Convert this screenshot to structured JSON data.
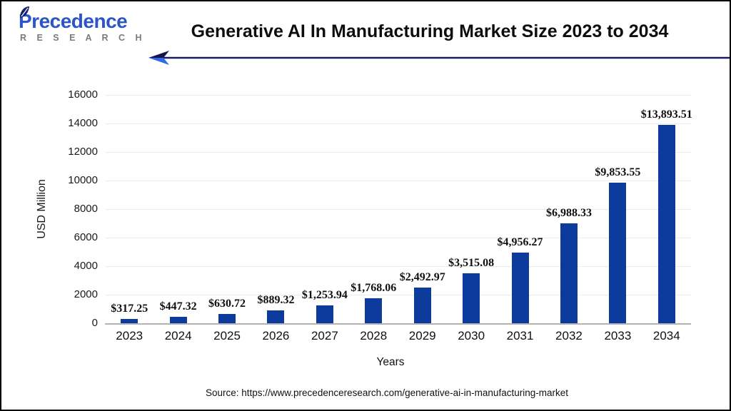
{
  "logo": {
    "brand": "Precedence",
    "sub": "R E S E A R C H"
  },
  "header": {
    "title": "Generative AI In Manufacturing Market Size 2023 to 2034"
  },
  "chart_data": {
    "type": "bar",
    "title": "Generative AI In Manufacturing Market Size 2023 to 2034",
    "categories": [
      "2023",
      "2024",
      "2025",
      "2026",
      "2027",
      "2028",
      "2029",
      "2030",
      "2031",
      "2032",
      "2033",
      "2034"
    ],
    "values": [
      317.25,
      447.32,
      630.72,
      889.32,
      1253.94,
      1768.06,
      2492.97,
      3515.08,
      4956.27,
      6988.33,
      9853.55,
      13893.51
    ],
    "value_labels": [
      "$317.25",
      "$447.32",
      "$630.72",
      "$889.32",
      "$1,253.94",
      "$1,768.06",
      "$2,492.97",
      "$3,515.08",
      "$4,956.27",
      "$6,988.33",
      "$9,853.55",
      "$13,893.51"
    ],
    "xlabel": "Years",
    "ylabel": "USD Million",
    "ylim": [
      0,
      16000
    ],
    "ytick_step": 2000,
    "grid": true,
    "legend": "none",
    "bar_color": "#0c3a9d"
  },
  "colors": {
    "bar": "#0c3a9d",
    "arrow_dark": "#1a1a66",
    "arrow_light": "#2f6be4",
    "baseline": "#b3b3b3",
    "gridline": "#ececec"
  },
  "footer": {
    "source": "Source: https://www.precedenceresearch.com/generative-ai-in-manufacturing-market"
  }
}
